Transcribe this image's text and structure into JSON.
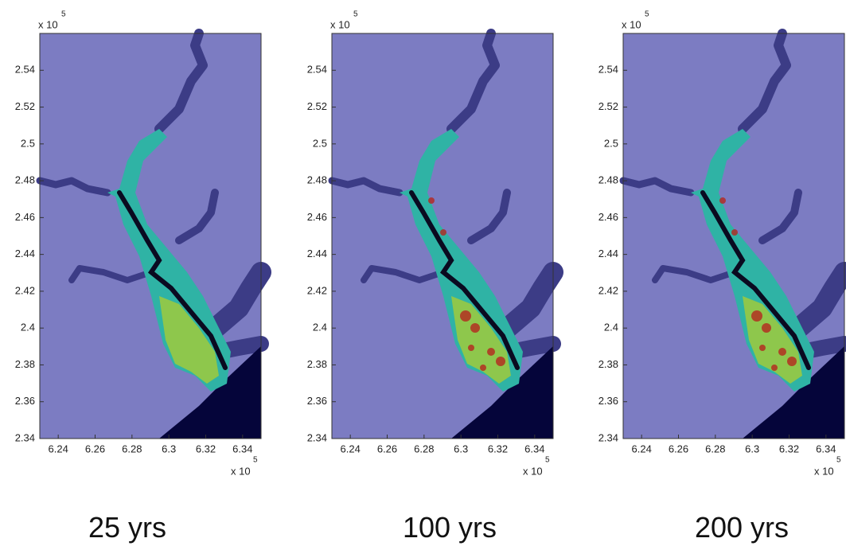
{
  "chart_data": [
    {
      "type": "map",
      "caption": "25 yrs",
      "xlim": [
        6.23,
        6.35
      ],
      "ylim": [
        2.34,
        2.56
      ],
      "xticks": [
        6.24,
        6.26,
        6.28,
        6.3,
        6.32,
        6.34
      ],
      "yticks": [
        2.34,
        2.36,
        2.38,
        2.4,
        2.42,
        2.44,
        2.46,
        2.48,
        2.5,
        2.52,
        2.54
      ],
      "x_scale_label": "x 10",
      "x_exponent": "5",
      "y_scale_label": "x 10",
      "y_exponent": "5"
    },
    {
      "type": "map",
      "caption": "100 yrs",
      "xlim": [
        6.23,
        6.35
      ],
      "ylim": [
        2.34,
        2.56
      ],
      "xticks": [
        6.24,
        6.26,
        6.28,
        6.3,
        6.32,
        6.34
      ],
      "yticks": [
        2.34,
        2.36,
        2.38,
        2.4,
        2.42,
        2.44,
        2.46,
        2.48,
        2.5,
        2.52,
        2.54
      ],
      "x_scale_label": "x 10",
      "x_exponent": "5",
      "y_scale_label": "x 10",
      "y_exponent": "5"
    },
    {
      "type": "map",
      "caption": "200 yrs",
      "xlim": [
        6.23,
        6.35
      ],
      "ylim": [
        2.34,
        2.56
      ],
      "xticks": [
        6.24,
        6.26,
        6.28,
        6.3,
        6.32,
        6.34
      ],
      "yticks": [
        2.34,
        2.36,
        2.38,
        2.4,
        2.42,
        2.44,
        2.46,
        2.48,
        2.5,
        2.52,
        2.54
      ],
      "x_scale_label": "x 10",
      "x_exponent": "5",
      "y_scale_label": "x 10",
      "y_exponent": "5"
    }
  ]
}
